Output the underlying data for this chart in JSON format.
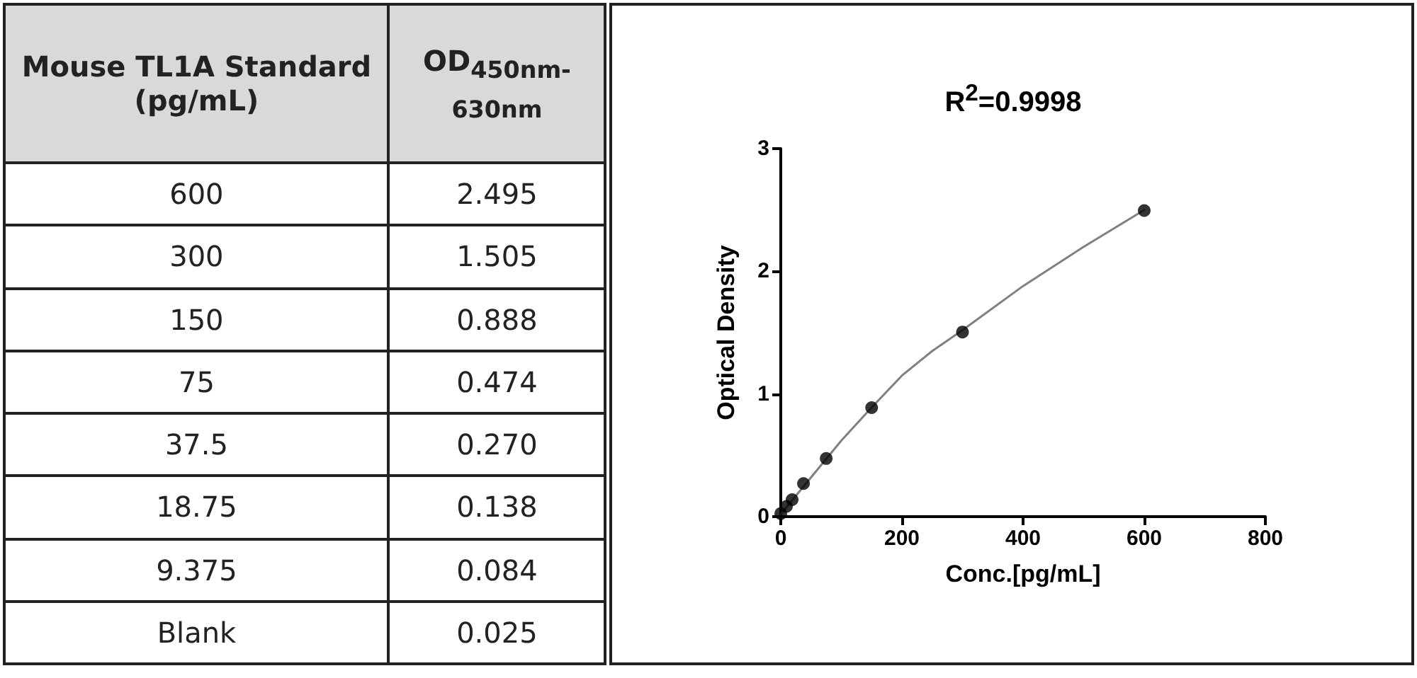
{
  "chart_data": [
    {
      "type": "other",
      "annotations": [
        "Mouse TL1A Standard (pg/mL)",
        "OD$_{450nm-630nm}$",
        "600",
        "2.495",
        "300",
        "1.505",
        "150",
        "0.888",
        "75",
        "0.474",
        "37.5",
        "0.270",
        "18.75",
        "0.138",
        "9.375",
        "0.084",
        "Blank",
        "0.025"
      ]
    },
    {
      "type": "scatter",
      "title": "R$^{2}$=0.9998",
      "xlabel": "Conc.[pg/mL]",
      "ylabel": "Optical Density",
      "xlim": [
        0,
        800
      ],
      "xticks": [
        0,
        200,
        400,
        600,
        800
      ],
      "ylim": [
        0,
        3
      ],
      "yticks": [
        0,
        1,
        2,
        3
      ],
      "marker": "circle",
      "series": [
        {
          "type": "line",
          "color": "#808080",
          "marker": "none",
          "x": [
            0,
            25,
            50,
            100,
            150,
            200,
            250,
            300,
            400,
            500,
            600
          ],
          "values": [
            0.02,
            0.17,
            0.32,
            0.62,
            0.89,
            1.15,
            1.35,
            1.52,
            1.88,
            2.2,
            2.5
          ]
        },
        {
          "type": "scatter",
          "color": "#000000",
          "x": [
            600,
            300,
            150,
            75,
            37.5,
            18.75,
            9.375,
            0
          ],
          "values": [
            2.495,
            1.505,
            0.888,
            0.474,
            0.27,
            0.138,
            0.084,
            0.025
          ]
        }
      ]
    }
  ]
}
